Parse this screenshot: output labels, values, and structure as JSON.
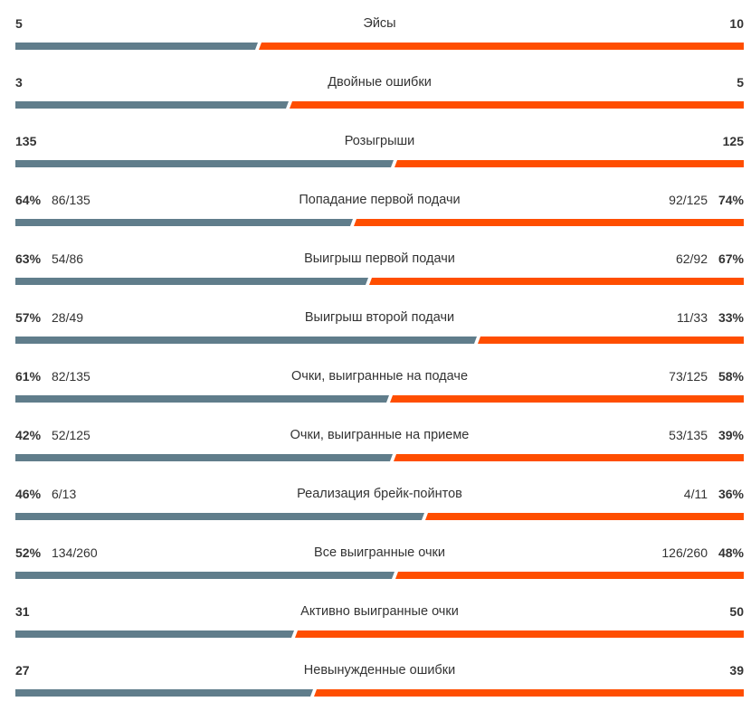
{
  "colors": {
    "player1": "#607d8b",
    "player2": "#ff4e00"
  },
  "stats": [
    {
      "title": "Эйсы",
      "left": "5",
      "right": "10",
      "lnum": 5,
      "rnum": 10
    },
    {
      "title": "Двойные ошибки",
      "left": "3",
      "right": "5",
      "lnum": 3,
      "rnum": 5
    },
    {
      "title": "Розыгрыши",
      "left": "135",
      "right": "125",
      "lnum": 135,
      "rnum": 125
    },
    {
      "title": "Попадание первой подачи",
      "left": "64%",
      "left_frac": "86/135",
      "right": "74%",
      "right_frac": "92/125",
      "lnum": 64,
      "rnum": 74
    },
    {
      "title": "Выигрыш первой подачи",
      "left": "63%",
      "left_frac": "54/86",
      "right": "67%",
      "right_frac": "62/92",
      "lnum": 63,
      "rnum": 67
    },
    {
      "title": "Выигрыш второй подачи",
      "left": "57%",
      "left_frac": "28/49",
      "right": "33%",
      "right_frac": "11/33",
      "lnum": 57,
      "rnum": 33
    },
    {
      "title": "Очки, выигранные на подаче",
      "left": "61%",
      "left_frac": "82/135",
      "right": "58%",
      "right_frac": "73/125",
      "lnum": 61,
      "rnum": 58
    },
    {
      "title": "Очки, выигранные на приеме",
      "left": "42%",
      "left_frac": "52/125",
      "right": "39%",
      "right_frac": "53/135",
      "lnum": 42,
      "rnum": 39
    },
    {
      "title": "Реализация брейк-пойнтов",
      "left": "46%",
      "left_frac": "6/13",
      "right": "36%",
      "right_frac": "4/11",
      "lnum": 46,
      "rnum": 36
    },
    {
      "title": "Все выигранные очки",
      "left": "52%",
      "left_frac": "134/260",
      "right": "48%",
      "right_frac": "126/260",
      "lnum": 52,
      "rnum": 48
    },
    {
      "title": "Активно выигранные очки",
      "left": "31",
      "right": "50",
      "lnum": 31,
      "rnum": 50
    },
    {
      "title": "Невынужденные ошибки",
      "left": "27",
      "right": "39",
      "lnum": 27,
      "rnum": 39
    }
  ]
}
